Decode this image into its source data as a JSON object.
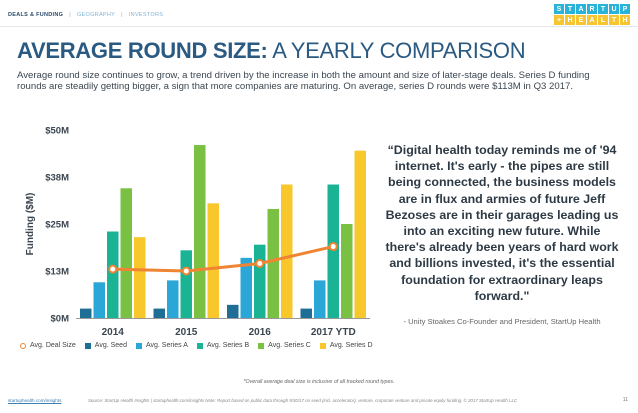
{
  "nav": {
    "active": "DEALS & FUNDING",
    "item2": "GEOGRAPHY",
    "item3": "INVESTORS"
  },
  "logo": {
    "row1": [
      "S",
      "T",
      "A",
      "R",
      "T",
      "U",
      "P"
    ],
    "row2": [
      "+",
      "H",
      "E",
      "A",
      "L",
      "T",
      "H"
    ]
  },
  "title": {
    "bold": "AVERAGE ROUND SIZE:",
    "rest": "A YEARLY COMPARISON"
  },
  "intro": "Average round size continues to grow, a trend driven by the increase in both the amount and size of later-stage deals. Series D funding rounds are steadily getting bigger, a sign that more companies are maturing. On average, series D rounds were $113M in Q3 2017.",
  "quote": "“Digital health today reminds me of '94 internet. It's early - the pipes are still being connected, the business models are in flux and armies of future Jeff Bezoses are in their garages leading us into an exciting new future. While there's already been years of hard work and billions invested, it's the essential foundation for extraordinary leaps forward.\"",
  "attribution": "- Unity Stoakes Co-Founder and President, StartUp Health",
  "footnote": "*Overall average deal size is inclusive of all tracked round types.",
  "footer": {
    "link": "startuphealth.com/insights",
    "source": "Source: StartUp Health Insights | startuphealth.com/insights Note: Report based on public data through 9/30/17 on seed (incl. accelerator), venture, corporate venture and private equity funding. © 2017 StartUp Health LLC",
    "page": "11"
  },
  "colors": {
    "seed": "#1f6e96",
    "seriesA": "#2aa7d6",
    "seriesB": "#1ab394",
    "seriesC": "#7ac143",
    "seriesD": "#f7c72c",
    "deal": "#ef8433"
  },
  "chart_data": {
    "type": "bar",
    "ylabel": "Funding ($M)",
    "ylim": [
      0,
      50
    ],
    "yticks": [
      0,
      12.5,
      25,
      37.5,
      50
    ],
    "ytick_labels": [
      "$0M",
      "$13M",
      "$25M",
      "$38M",
      "$50M"
    ],
    "categories": [
      "2014",
      "2015",
      "2016",
      "2017 YTD"
    ],
    "grid": false,
    "legend_position": "bottom",
    "series": [
      {
        "name": "Avg. Seed",
        "key": "seed",
        "values": [
          2.5,
          2.5,
          3.5,
          2.5
        ]
      },
      {
        "name": "Avg. Series A",
        "key": "seriesA",
        "values": [
          9.5,
          10,
          16,
          10
        ]
      },
      {
        "name": "Avg. Series B",
        "key": "seriesB",
        "values": [
          23,
          18,
          19.5,
          35.5
        ]
      },
      {
        "name": "Avg. Series C",
        "key": "seriesC",
        "values": [
          34.5,
          46,
          29,
          25
        ]
      },
      {
        "name": "Avg. Series D",
        "key": "seriesD",
        "values": [
          21.5,
          30.5,
          35.5,
          44.5
        ]
      }
    ],
    "line": {
      "name": "Avg. Deal Size",
      "key": "deal",
      "values": [
        13,
        12.5,
        14.5,
        19
      ]
    }
  }
}
